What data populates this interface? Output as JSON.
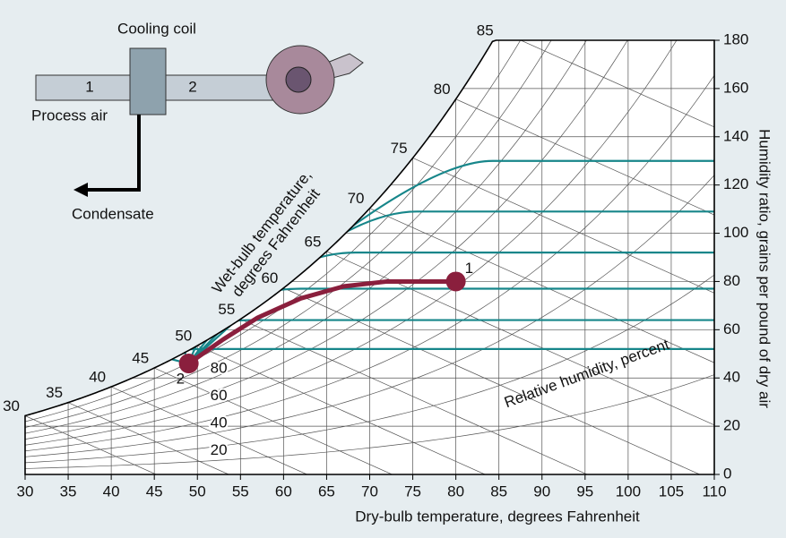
{
  "chart_data": {
    "type": "psychrometric",
    "xlabel": "Dry-bulb temperature, degrees Fahrenheit",
    "ylabel": "Humidity ratio, grains per pound of dry air",
    "xlim": [
      30,
      110
    ],
    "ylim": [
      0,
      180
    ],
    "xticks": [
      30,
      35,
      40,
      45,
      50,
      55,
      60,
      65,
      70,
      75,
      80,
      85,
      90,
      95,
      100,
      105,
      110
    ],
    "yticks": [
      0,
      20,
      40,
      60,
      80,
      100,
      120,
      140,
      160,
      180
    ],
    "wet_bulb_label": [
      "Wet-bulb temperature,",
      "degrees Fahrenheit"
    ],
    "wet_bulb_ticks": [
      30,
      35,
      40,
      45,
      50,
      55,
      60,
      65,
      70,
      75,
      80,
      85
    ],
    "rh_label": "Relative humidity, percent",
    "rh_lines": [
      10,
      20,
      30,
      40,
      50,
      60,
      70,
      80,
      90
    ],
    "rh_ticks": [
      20,
      40,
      60,
      80
    ],
    "coil_lines": [
      52,
      64,
      77,
      92,
      109,
      130
    ],
    "coil_color": "#17868a",
    "process": {
      "color": "#8a1f3d",
      "x": [
        49,
        53,
        57,
        62,
        67,
        72,
        80
      ],
      "y": [
        46,
        56,
        65,
        73,
        78,
        80,
        80
      ],
      "labels": [
        "2",
        "1"
      ]
    },
    "diagram": {
      "coil": "Cooling coil",
      "inlet": "1",
      "outlet": "2",
      "air": "Process air",
      "condensate": "Condensate"
    }
  }
}
